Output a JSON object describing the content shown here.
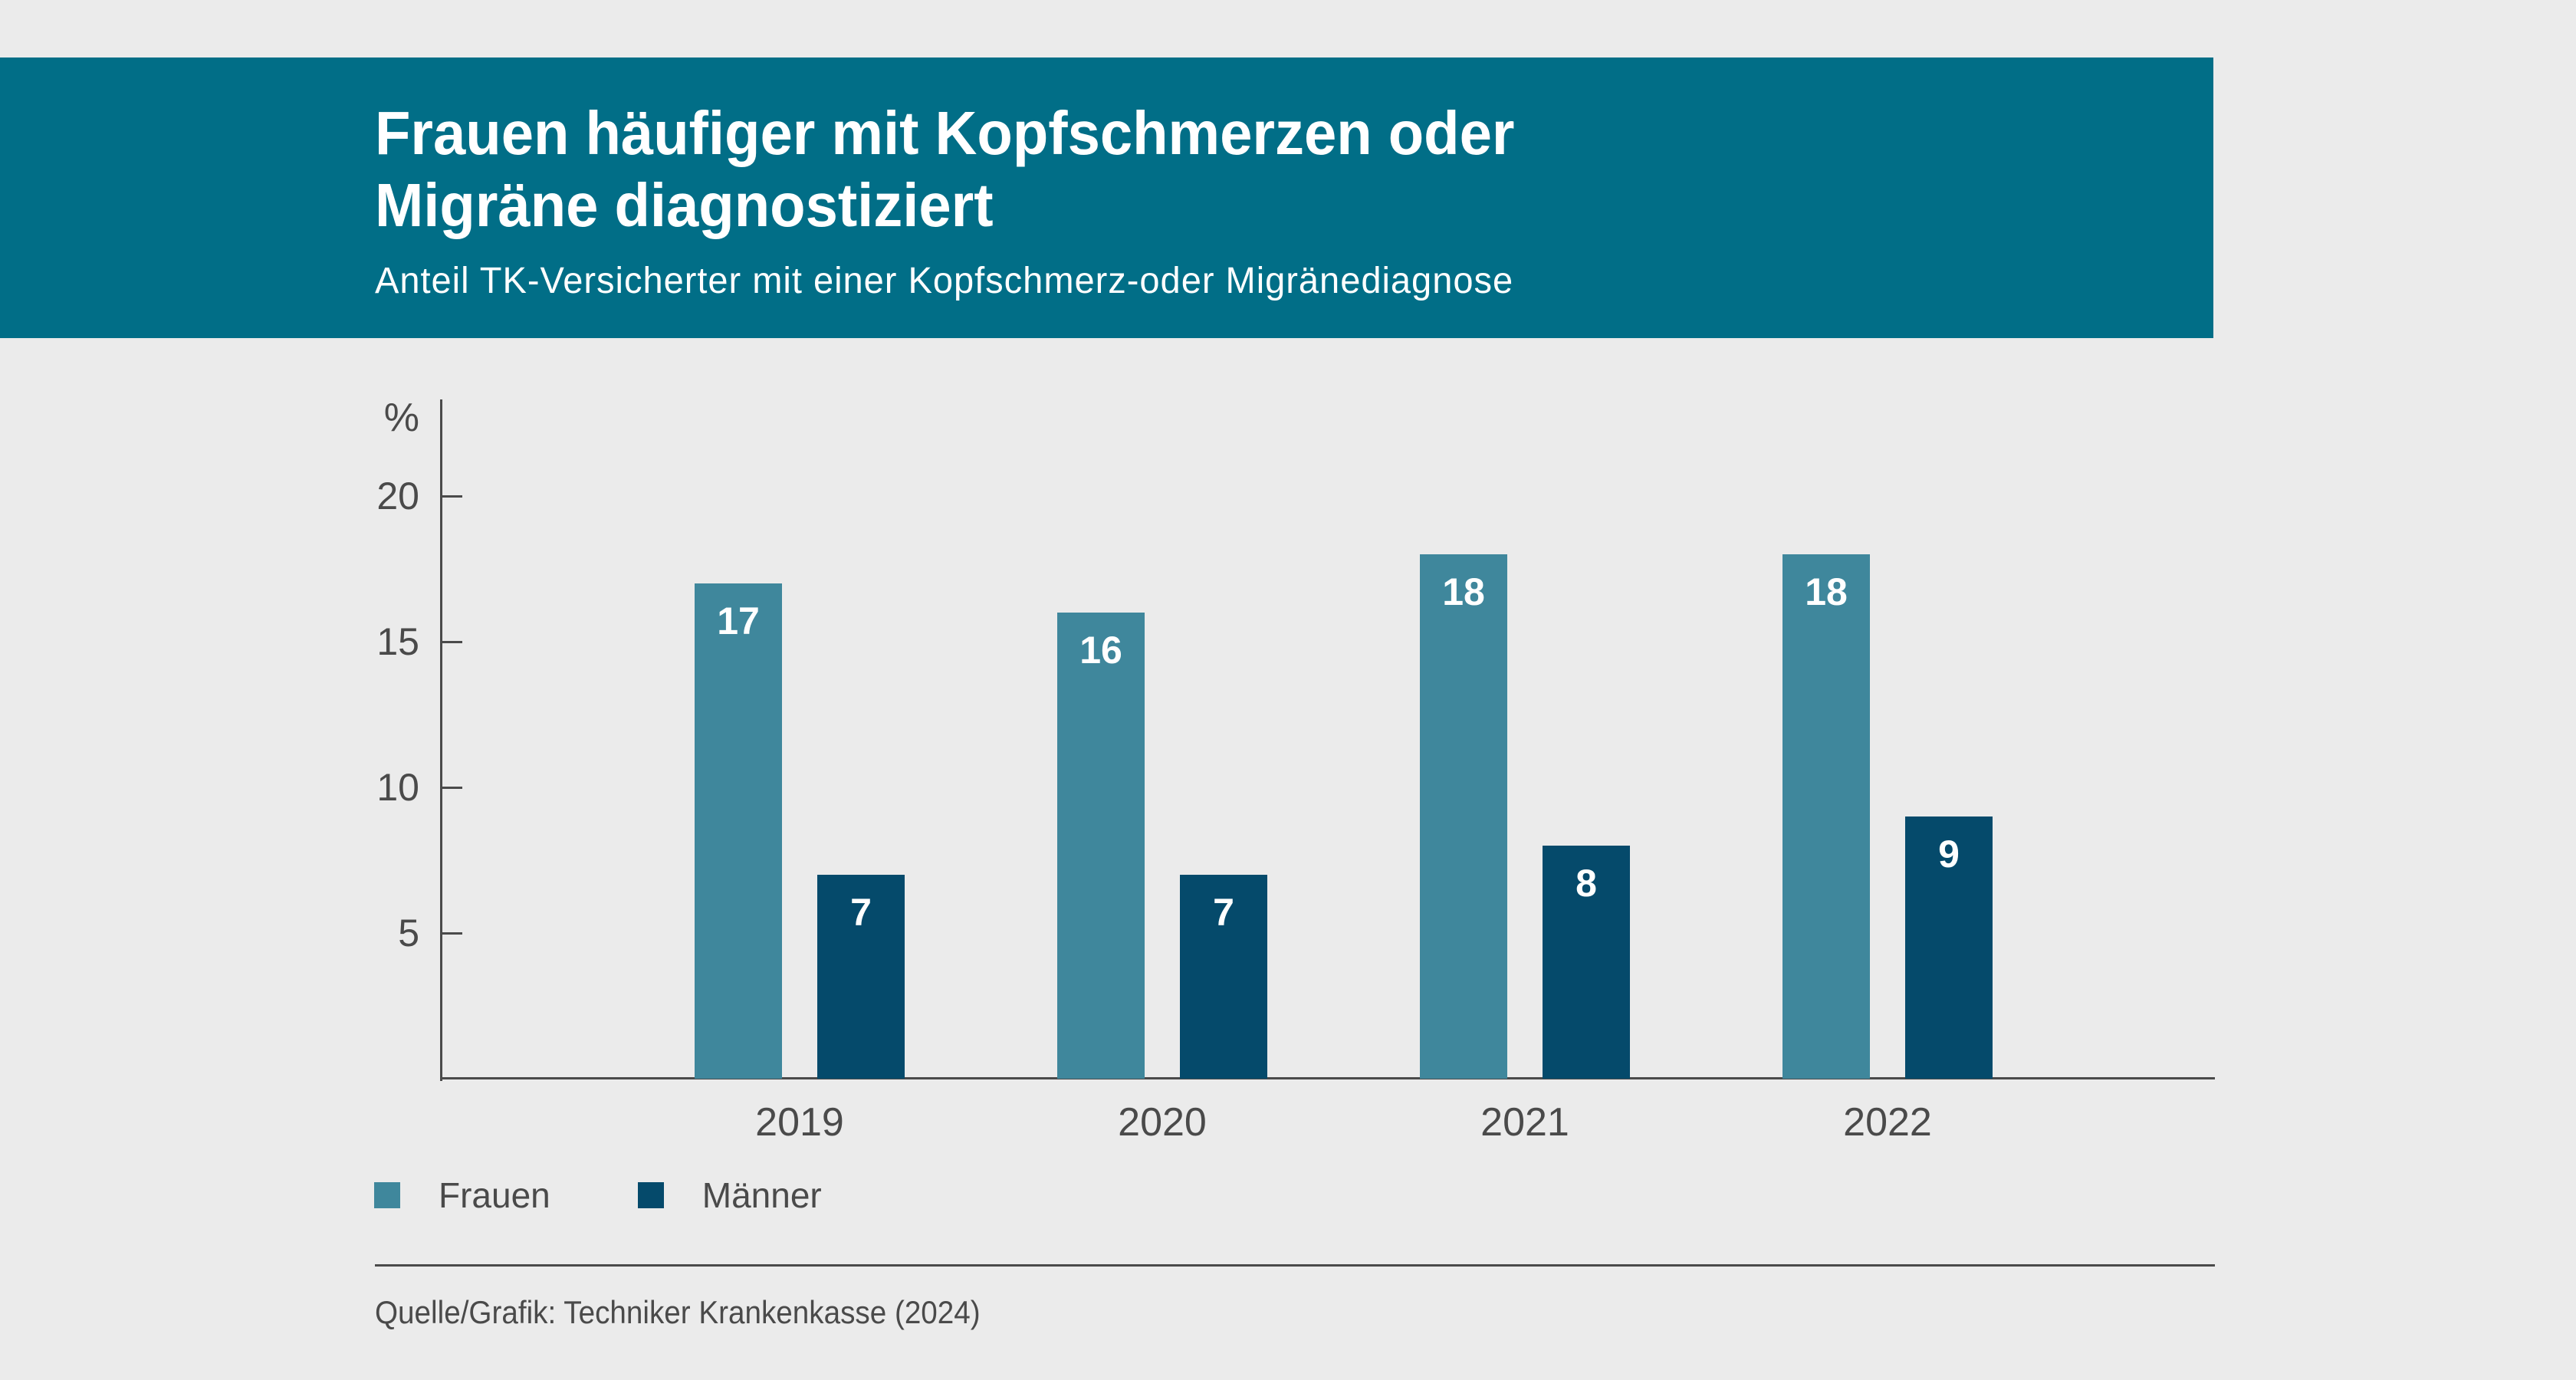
{
  "header": {
    "title": "Frauen häufiger mit Kopfschmerzen oder\nMigräne diagnostiziert",
    "subtitle": "Anteil TK-Versicherter mit einer Kopfschmerz-oder Migränediagnose"
  },
  "chart_data": {
    "type": "bar",
    "title": "Frauen häufiger mit Kopfschmerzen oder Migräne diagnostiziert",
    "subtitle": "Anteil TK-Versicherter mit einer Kopfschmerz-oder Migränediagnose",
    "unit_label": "%",
    "categories": [
      "2019",
      "2020",
      "2021",
      "2022"
    ],
    "series": [
      {
        "name": "Frauen",
        "color": "#3f879c",
        "values": [
          17,
          16,
          18,
          18
        ]
      },
      {
        "name": "Männer",
        "color": "#054a6b",
        "values": [
          7,
          7,
          8,
          9
        ]
      }
    ],
    "ylim": [
      0,
      23.3
    ],
    "yticks": [
      5,
      10,
      15,
      20
    ],
    "grid": false,
    "value_labels": true,
    "legend_position": "bottom"
  },
  "footer": {
    "source": "Quelle/Grafik: Techniker Krankenkasse (2024)"
  },
  "colors": {
    "background": "#ebebeb",
    "header_background": "#016e87",
    "bar_frauen": "#3f879c",
    "bar_maenner": "#054a6b",
    "axis": "#4a4a4a",
    "text": "#4a4a4a",
    "title_text": "#ffffff",
    "bar_label_text": "#ffffff"
  }
}
